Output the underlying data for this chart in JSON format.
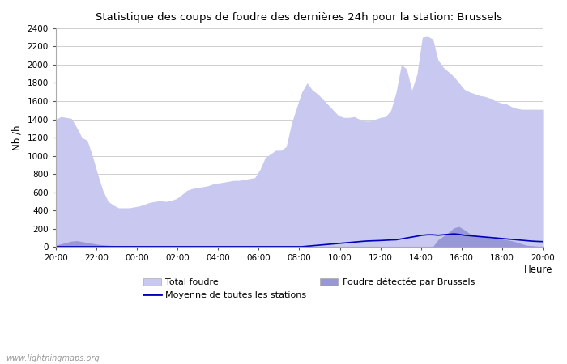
{
  "title": "Statistique des coups de foudre des dernières 24h pour la station: Brussels",
  "xlabel": "Heure",
  "ylabel": "Nb /h",
  "watermark": "www.lightningmaps.org",
  "ylim": [
    0,
    2400
  ],
  "yticks": [
    0,
    200,
    400,
    600,
    800,
    1000,
    1200,
    1400,
    1600,
    1800,
    2000,
    2200,
    2400
  ],
  "xtick_labels": [
    "20:00",
    "22:00",
    "00:00",
    "02:00",
    "04:00",
    "06:00",
    "08:00",
    "10:00",
    "12:00",
    "14:00",
    "16:00",
    "18:00",
    "20:00"
  ],
  "color_total": "#c8c8f0",
  "color_local": "#9898d8",
  "color_mean": "#0000bb",
  "bg_color": "#ffffff",
  "total_foudre": [
    1400,
    1430,
    1420,
    1410,
    1310,
    1200,
    1170,
    1000,
    800,
    620,
    500,
    460,
    430,
    430,
    430,
    440,
    450,
    470,
    490,
    500,
    510,
    500,
    510,
    530,
    570,
    620,
    640,
    650,
    660,
    670,
    690,
    700,
    710,
    720,
    730,
    730,
    740,
    750,
    760,
    850,
    980,
    1020,
    1060,
    1060,
    1100,
    1350,
    1530,
    1700,
    1800,
    1720,
    1680,
    1620,
    1560,
    1500,
    1440,
    1420,
    1420,
    1430,
    1400,
    1380,
    1380,
    1400,
    1420,
    1430,
    1500,
    1700,
    2000,
    1950,
    1720,
    1900,
    2300,
    2310,
    2280,
    2050,
    1970,
    1920,
    1870,
    1800,
    1730,
    1700,
    1680,
    1660,
    1650,
    1630,
    1600,
    1580,
    1570,
    1540,
    1520,
    1510,
    1510,
    1510,
    1510,
    1510
  ],
  "local_foudre": [
    20,
    35,
    50,
    65,
    70,
    60,
    50,
    40,
    30,
    25,
    20,
    18,
    15,
    14,
    13,
    12,
    11,
    10,
    10,
    10,
    8,
    7,
    6,
    5,
    5,
    5,
    5,
    5,
    5,
    5,
    5,
    5,
    5,
    5,
    5,
    5,
    5,
    5,
    5,
    5,
    5,
    5,
    5,
    5,
    5,
    5,
    5,
    5,
    5,
    5,
    5,
    5,
    5,
    5,
    5,
    5,
    5,
    5,
    5,
    5,
    5,
    5,
    5,
    5,
    5,
    5,
    5,
    5,
    5,
    5,
    5,
    5,
    5,
    80,
    120,
    160,
    210,
    225,
    190,
    150,
    130,
    120,
    110,
    100,
    95,
    90,
    80,
    70,
    55,
    35,
    20,
    15,
    10,
    10
  ],
  "mean_line": [
    5,
    5,
    5,
    5,
    5,
    5,
    5,
    5,
    5,
    5,
    5,
    5,
    5,
    5,
    5,
    5,
    5,
    5,
    5,
    5,
    5,
    5,
    5,
    5,
    5,
    5,
    5,
    5,
    5,
    5,
    5,
    5,
    5,
    5,
    5,
    5,
    5,
    5,
    5,
    5,
    5,
    5,
    5,
    5,
    5,
    5,
    5,
    5,
    10,
    15,
    20,
    25,
    30,
    35,
    40,
    45,
    50,
    55,
    60,
    65,
    68,
    70,
    72,
    75,
    78,
    80,
    90,
    100,
    110,
    120,
    130,
    135,
    135,
    130,
    135,
    140,
    145,
    140,
    130,
    125,
    120,
    115,
    110,
    105,
    100,
    95,
    90,
    85,
    80,
    75,
    70,
    65,
    62,
    60
  ]
}
